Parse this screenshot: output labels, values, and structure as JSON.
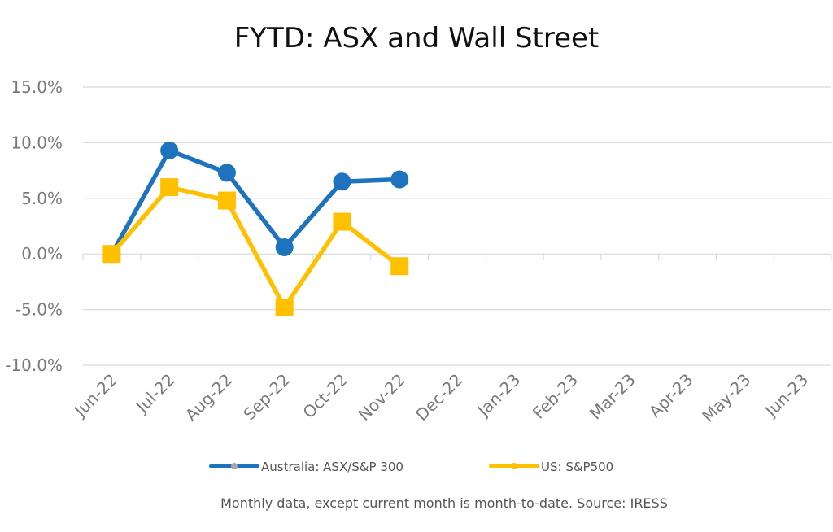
{
  "chart_data": {
    "type": "line",
    "title": "FYTD: ASX and Wall Street",
    "subtitle": "",
    "xlabel": "",
    "ylabel": "",
    "categories": [
      "Jun-22",
      "Jul-22",
      "Aug-22",
      "Sep-22",
      "Oct-22",
      "Nov-22",
      "Dec-22",
      "Jan-23",
      "Feb-23",
      "Mar-23",
      "Apr-23",
      "May-23",
      "Jun-23"
    ],
    "y_ticks": [
      "15.0%",
      "10.0%",
      "5.0%",
      "0.0%",
      "-5.0%",
      "-10.0%"
    ],
    "ylim": [
      -10,
      15
    ],
    "grid": true,
    "legend_position": "bottom",
    "series": [
      {
        "name": "Australia: ASX/S&P 300",
        "color": "#1e73be",
        "marker": "circle",
        "values": [
          0.0,
          9.3,
          7.3,
          0.6,
          6.5,
          6.7,
          null,
          null,
          null,
          null,
          null,
          null,
          null
        ]
      },
      {
        "name": "US: S&P500",
        "color": "#ffc000",
        "marker": "square",
        "values": [
          0.0,
          6.0,
          4.8,
          -4.8,
          2.9,
          -1.1,
          null,
          null,
          null,
          null,
          null,
          null,
          null
        ]
      }
    ],
    "note": "Monthly data, except current month is month-to-date.  Source: IRESS"
  }
}
